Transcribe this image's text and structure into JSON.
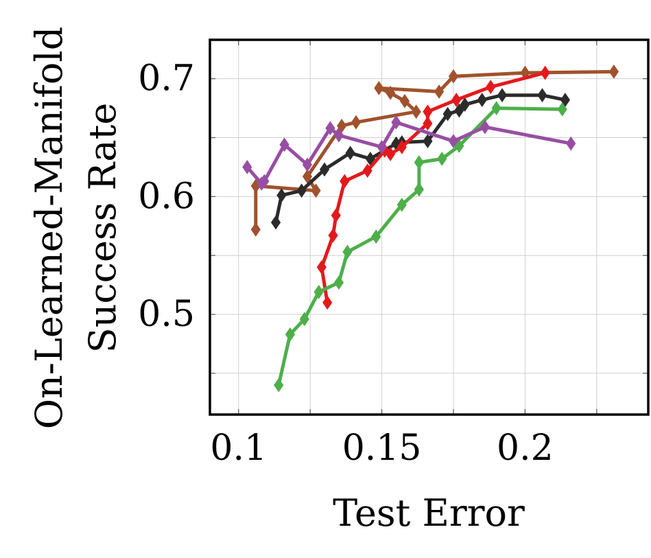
{
  "chart_data": {
    "type": "line",
    "xlabel": "Test Error",
    "ylabel": [
      "On-Learned-Manifold",
      "Success Rate"
    ],
    "xlim": [
      0.09,
      0.243
    ],
    "ylim": [
      0.415,
      0.733
    ],
    "xticks": [
      0.1,
      0.15,
      0.2
    ],
    "xtick_labels": [
      "0.1",
      "0.15",
      "0.2"
    ],
    "yticks": [
      0.5,
      0.6,
      0.7
    ],
    "ytick_labels": [
      "0.5",
      "0.6",
      "0.7"
    ],
    "minor_xticks": [
      0.125,
      0.175,
      0.225
    ],
    "minor_yticks": [
      0.45,
      0.55,
      0.65
    ],
    "grid": true,
    "legend": false,
    "marker": "diamond",
    "series": [
      {
        "color": "#a0522d",
        "points": [
          [
            0.106,
            0.572
          ],
          [
            0.106,
            0.609
          ],
          [
            0.127,
            0.605
          ],
          [
            0.124,
            0.617
          ],
          [
            0.136,
            0.66
          ],
          [
            0.141,
            0.663
          ],
          [
            0.162,
            0.672
          ],
          [
            0.158,
            0.681
          ],
          [
            0.153,
            0.688
          ],
          [
            0.149,
            0.692
          ],
          [
            0.17,
            0.689
          ],
          [
            0.175,
            0.702
          ],
          [
            0.2,
            0.705
          ],
          [
            0.231,
            0.706
          ]
        ]
      },
      {
        "color": "#2b2b2b",
        "points": [
          [
            0.113,
            0.578
          ],
          [
            0.115,
            0.601
          ],
          [
            0.122,
            0.605
          ],
          [
            0.13,
            0.623
          ],
          [
            0.139,
            0.637
          ],
          [
            0.146,
            0.632
          ],
          [
            0.155,
            0.645
          ],
          [
            0.157,
            0.646
          ],
          [
            0.166,
            0.647
          ],
          [
            0.173,
            0.67
          ],
          [
            0.177,
            0.673
          ],
          [
            0.179,
            0.678
          ],
          [
            0.185,
            0.682
          ],
          [
            0.192,
            0.686
          ],
          [
            0.206,
            0.686
          ],
          [
            0.214,
            0.682
          ]
        ]
      },
      {
        "color": "#e31a1c",
        "points": [
          [
            0.131,
            0.51
          ],
          [
            0.129,
            0.54
          ],
          [
            0.133,
            0.567
          ],
          [
            0.134,
            0.584
          ],
          [
            0.137,
            0.613
          ],
          [
            0.145,
            0.622
          ],
          [
            0.151,
            0.639
          ],
          [
            0.153,
            0.636
          ],
          [
            0.157,
            0.642
          ],
          [
            0.166,
            0.662
          ],
          [
            0.166,
            0.672
          ],
          [
            0.176,
            0.682
          ],
          [
            0.188,
            0.693
          ],
          [
            0.207,
            0.705
          ]
        ]
      },
      {
        "color": "#4daf4a",
        "points": [
          [
            0.114,
            0.44
          ],
          [
            0.118,
            0.483
          ],
          [
            0.123,
            0.496
          ],
          [
            0.128,
            0.519
          ],
          [
            0.135,
            0.527
          ],
          [
            0.138,
            0.553
          ],
          [
            0.148,
            0.566
          ],
          [
            0.157,
            0.593
          ],
          [
            0.163,
            0.606
          ],
          [
            0.163,
            0.629
          ],
          [
            0.171,
            0.632
          ],
          [
            0.177,
            0.643
          ],
          [
            0.19,
            0.675
          ],
          [
            0.213,
            0.674
          ]
        ]
      },
      {
        "color": "#984ea3",
        "points": [
          [
            0.103,
            0.625
          ],
          [
            0.108,
            0.611
          ],
          [
            0.109,
            0.613
          ],
          [
            0.116,
            0.644
          ],
          [
            0.124,
            0.627
          ],
          [
            0.132,
            0.658
          ],
          [
            0.135,
            0.652
          ],
          [
            0.15,
            0.642
          ],
          [
            0.155,
            0.663
          ],
          [
            0.175,
            0.647
          ],
          [
            0.186,
            0.659
          ],
          [
            0.216,
            0.645
          ]
        ]
      }
    ]
  }
}
